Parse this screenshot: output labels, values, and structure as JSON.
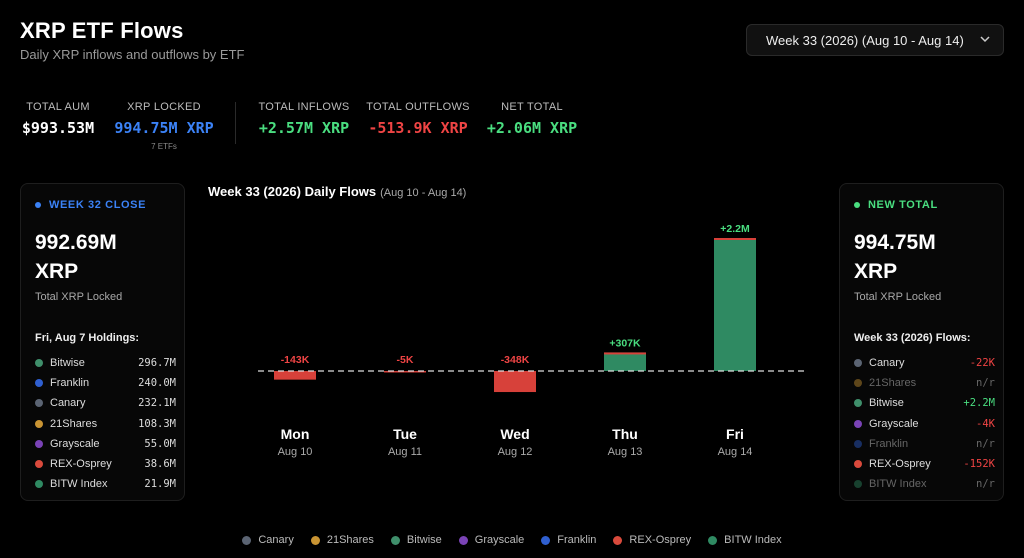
{
  "header": {
    "title": "XRP ETF Flows",
    "subtitle": "Daily XRP inflows and outflows by ETF"
  },
  "week_select": {
    "value": "Week 33 (2026) (Aug 10 - Aug 14)"
  },
  "stats": {
    "total_aum": {
      "label": "TOTAL AUM",
      "value": "$993.53M",
      "color": "#ffffff"
    },
    "xrp_locked": {
      "label": "XRP LOCKED",
      "value": "994.75M XRP",
      "sub": "7 ETFs",
      "color": "#3b82f6"
    },
    "total_inflows": {
      "label": "TOTAL INFLOWS",
      "value": "+2.57M XRP",
      "color": "#4ade80"
    },
    "total_outflows": {
      "label": "TOTAL OUTFLOWS",
      "value": "-513.9K XRP",
      "color": "#ef4444"
    },
    "net_total": {
      "label": "NET TOTAL",
      "value": "+2.06M XRP",
      "color": "#4ade80"
    }
  },
  "left_panel": {
    "tag": "WEEK 32 CLOSE",
    "tag_color": "#3b82f6",
    "big_line1": "992.69M",
    "big_line2": "XRP",
    "sub": "Total XRP Locked",
    "heading": "Fri, Aug 7 Holdings:",
    "rows": [
      {
        "name": "Bitwise",
        "value": "296.7M",
        "color": "#3f8f6b"
      },
      {
        "name": "Franklin",
        "value": "240.0M",
        "color": "#2f5fd0"
      },
      {
        "name": "Canary",
        "value": "232.1M",
        "color": "#5b6473"
      },
      {
        "name": "21Shares",
        "value": "108.3M",
        "color": "#c99433"
      },
      {
        "name": "Grayscale",
        "value": "55.0M",
        "color": "#7a43b6"
      },
      {
        "name": "REX-Osprey",
        "value": "38.6M",
        "color": "#d94a3c"
      },
      {
        "name": "BITW Index",
        "value": "21.9M",
        "color": "#2f8a62"
      }
    ]
  },
  "right_panel": {
    "tag": "NEW TOTAL",
    "tag_color": "#4ade80",
    "big_line1": "994.75M",
    "big_line2": "XRP",
    "sub": "Total XRP Locked",
    "heading": "Week 33 (2026) Flows:",
    "rows": [
      {
        "name": "Canary",
        "value": "-22K",
        "color": "#5b6473",
        "value_color": "#ef4444",
        "dim": false
      },
      {
        "name": "21Shares",
        "value": "n/r",
        "color": "#c99433",
        "value_color": "#666666",
        "dim": true
      },
      {
        "name": "Bitwise",
        "value": "+2.2M",
        "color": "#3f8f6b",
        "value_color": "#4ade80",
        "dim": false
      },
      {
        "name": "Grayscale",
        "value": "-4K",
        "color": "#7a43b6",
        "value_color": "#ef4444",
        "dim": false
      },
      {
        "name": "Franklin",
        "value": "n/r",
        "color": "#2f5fd0",
        "value_color": "#666666",
        "dim": true
      },
      {
        "name": "REX-Osprey",
        "value": "-152K",
        "color": "#d94a3c",
        "value_color": "#ef4444",
        "dim": false
      },
      {
        "name": "BITW Index",
        "value": "n/r",
        "color": "#2f8a62",
        "value_color": "#666666",
        "dim": true
      }
    ]
  },
  "chart_data": {
    "type": "bar",
    "title": "Week 33 (2026) Daily Flows",
    "date_range": "(Aug 10 - Aug 14)",
    "categories": [
      "Mon",
      "Tue",
      "Wed",
      "Thu",
      "Fri"
    ],
    "dates": [
      "Aug 10",
      "Aug 11",
      "Aug 12",
      "Aug 13",
      "Aug 14"
    ],
    "values": [
      -143000,
      -5000,
      -348000,
      307000,
      2200000
    ],
    "value_labels": [
      "-143K",
      "-5K",
      "-348K",
      "+307K",
      "+2.2M"
    ],
    "ylim": [
      -500000,
      2800000
    ],
    "grid": false,
    "zero_line": "dashed",
    "colors": {
      "positive": "#2f8a62",
      "negative": "#d7413a",
      "positive_label": "#4ade80",
      "negative_label": "#ef4444"
    }
  },
  "legend": [
    {
      "name": "Canary",
      "color": "#5b6473"
    },
    {
      "name": "21Shares",
      "color": "#c99433"
    },
    {
      "name": "Bitwise",
      "color": "#3f8f6b"
    },
    {
      "name": "Grayscale",
      "color": "#7a43b6"
    },
    {
      "name": "Franklin",
      "color": "#2f5fd0"
    },
    {
      "name": "REX-Osprey",
      "color": "#d94a3c"
    },
    {
      "name": "BITW Index",
      "color": "#2f8a62"
    }
  ]
}
